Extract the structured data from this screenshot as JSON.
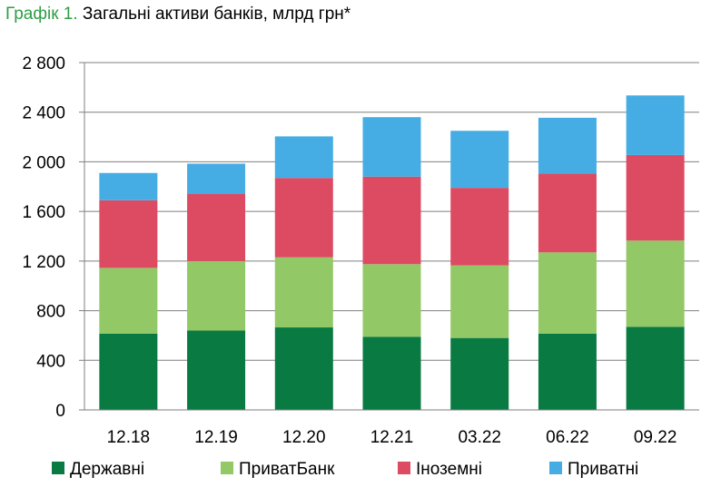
{
  "title": {
    "prefix": "Графік 1.",
    "text": " Загальні активи банків, млрд грн*"
  },
  "colors": {
    "title_prefix": "#2e9e45",
    "Державні": "#0a7a43",
    "ПриватБанк": "#92c865",
    "Іноземні": "#dd4b62",
    "Приватні": "#45ade3"
  },
  "chart_data": {
    "type": "bar",
    "stacked": true,
    "title": "Графік 1. Загальні активи банків, млрд грн*",
    "categories": [
      "12.18",
      "12.19",
      "12.20",
      "12.21",
      "03.22",
      "06.22",
      "09.22"
    ],
    "series": [
      {
        "name": "Державні",
        "values": [
          615,
          640,
          665,
          590,
          580,
          615,
          670
        ]
      },
      {
        "name": "ПриватБанк",
        "values": [
          530,
          560,
          565,
          585,
          585,
          655,
          695
        ]
      },
      {
        "name": "Іноземні",
        "values": [
          545,
          540,
          640,
          705,
          625,
          635,
          690
        ]
      },
      {
        "name": "Приватні",
        "values": [
          220,
          245,
          335,
          480,
          460,
          450,
          480
        ]
      }
    ],
    "ylim": [
      0,
      2800
    ],
    "yticks": [
      0,
      400,
      800,
      1200,
      1600,
      2000,
      2400,
      2800
    ],
    "ytick_labels": [
      "0",
      "400",
      "800",
      "1 200",
      "1 600",
      "2 000",
      "2 400",
      "2 800"
    ],
    "xlabel": "",
    "ylabel": "",
    "grid": true,
    "legend": "bottom"
  }
}
